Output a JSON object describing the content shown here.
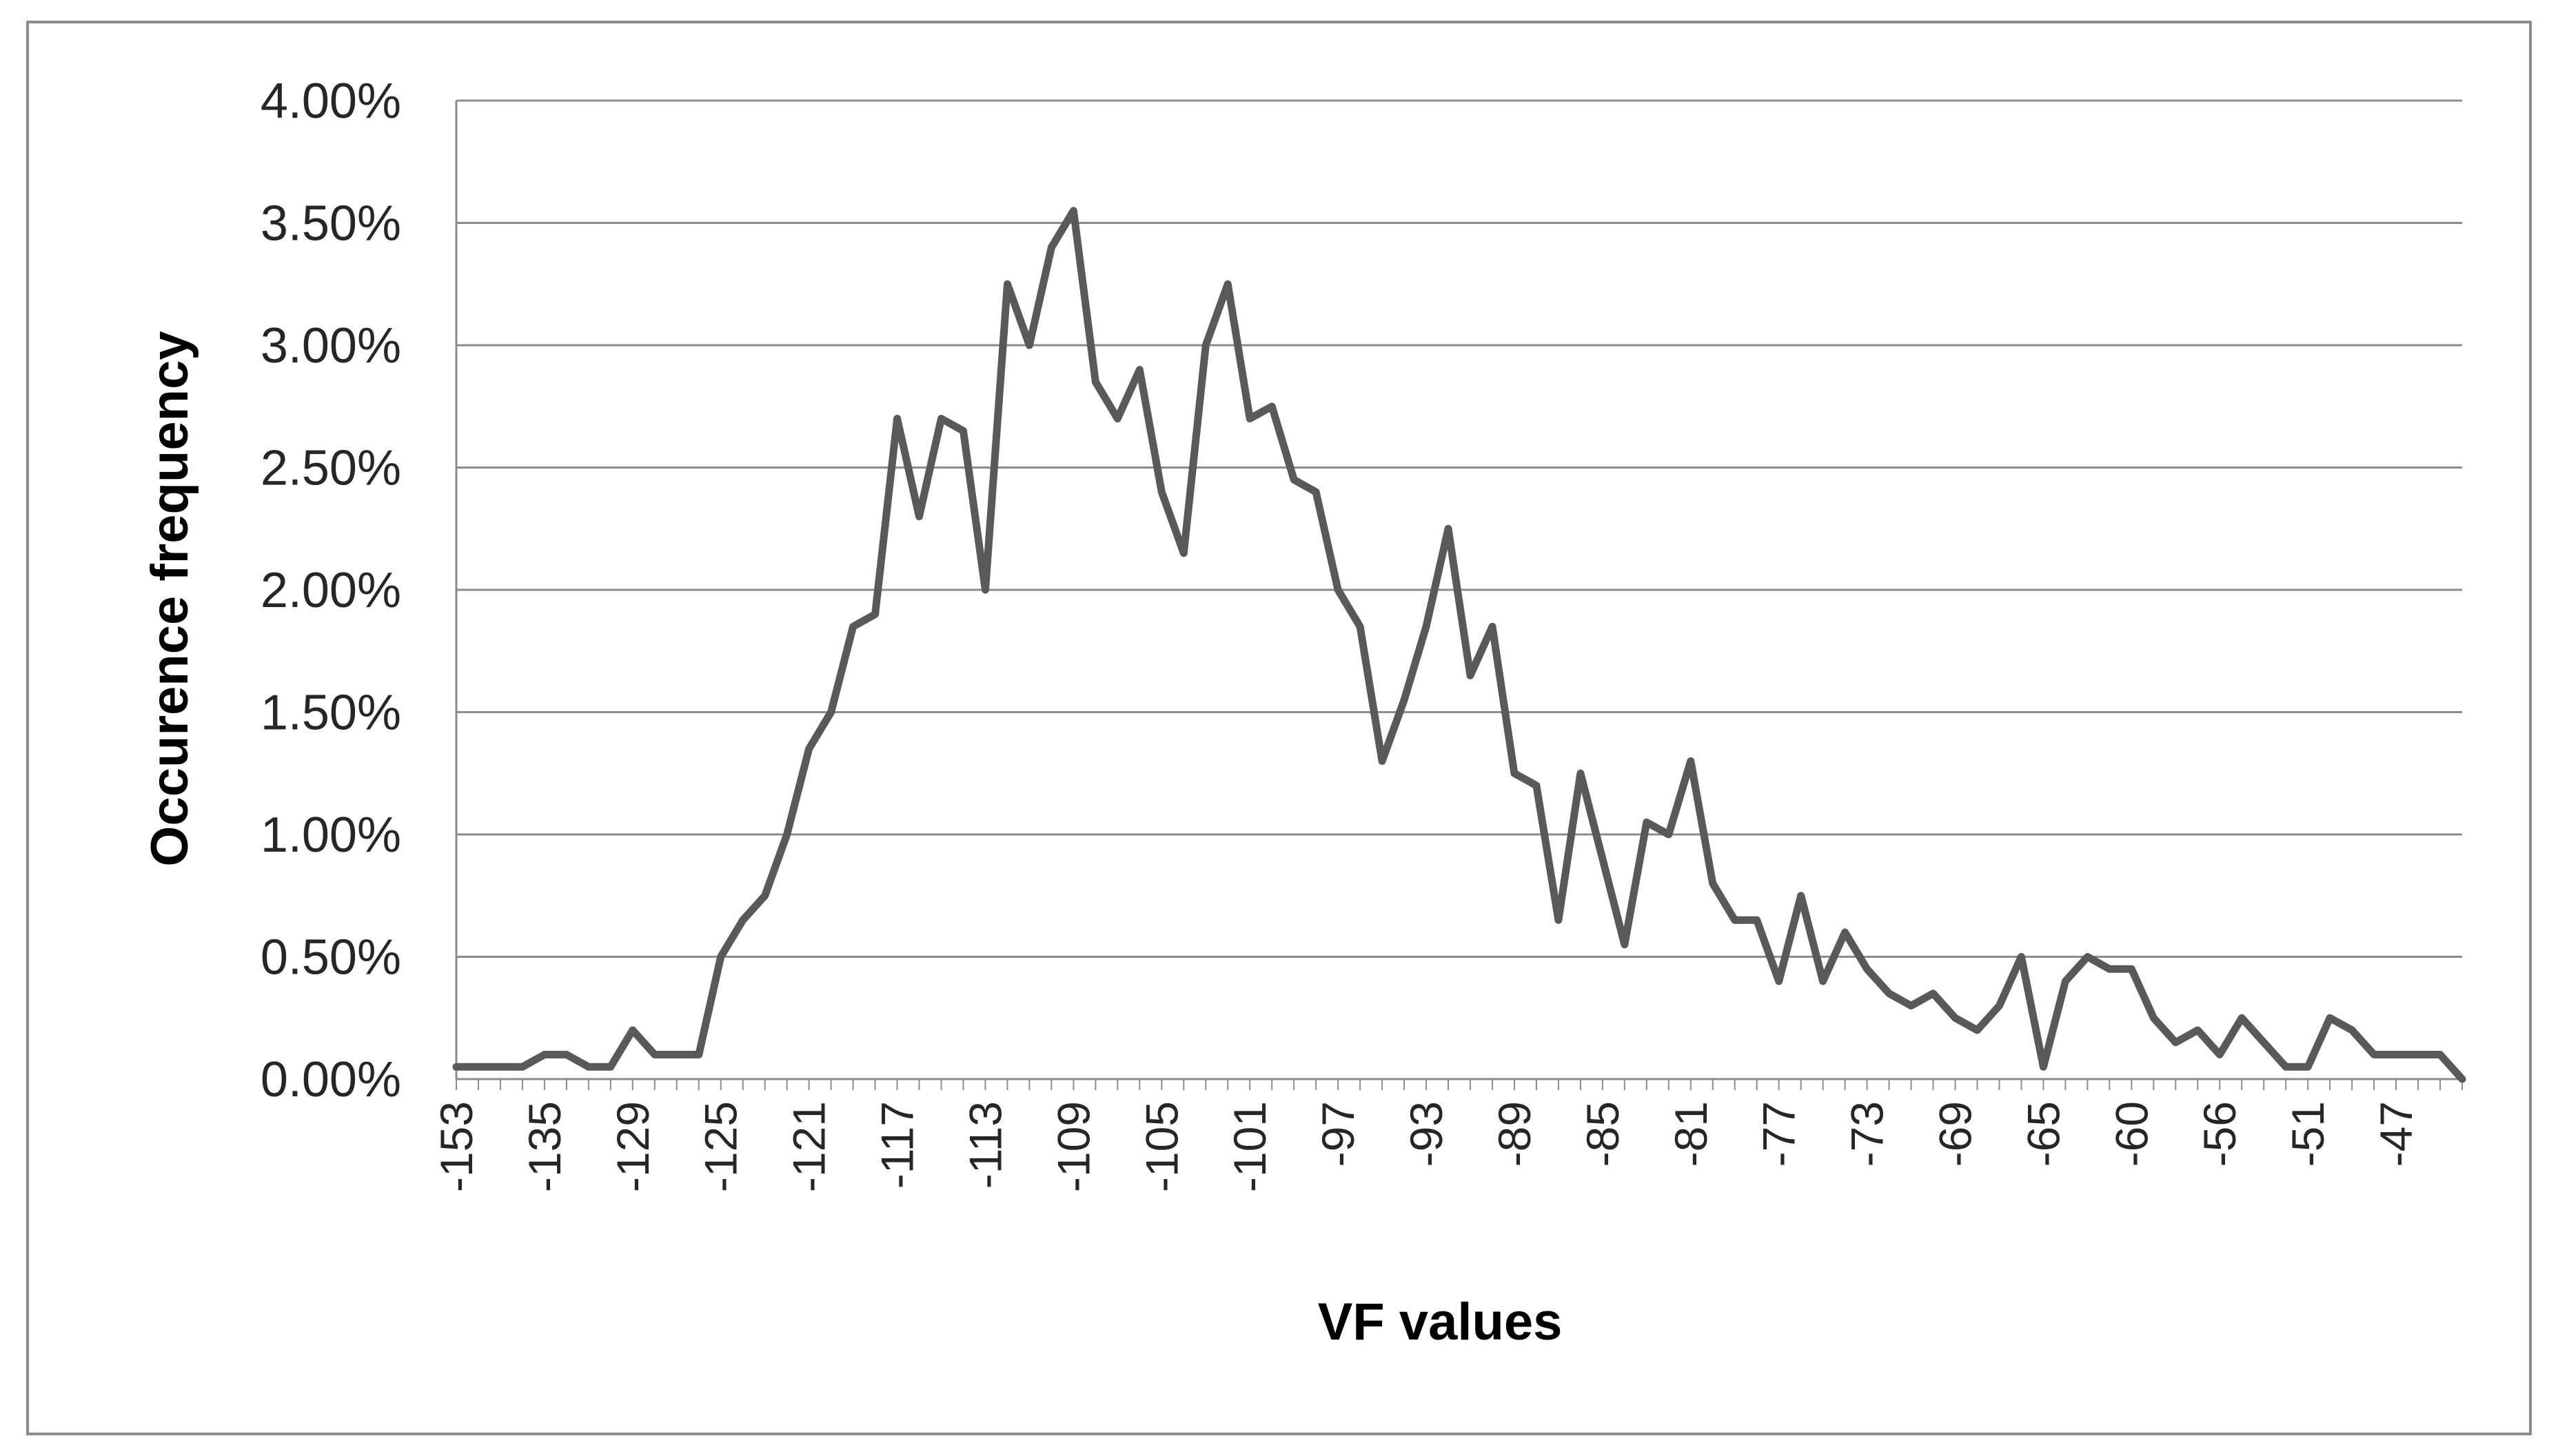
{
  "chart_data": {
    "type": "line",
    "title": "",
    "xlabel": "VF values",
    "ylabel": "Occurence frequency",
    "ylim": [
      0,
      0.04
    ],
    "yticks": [
      {
        "value": 0.0,
        "label": "0.00%"
      },
      {
        "value": 0.005,
        "label": "0.50%"
      },
      {
        "value": 0.01,
        "label": "1.00%"
      },
      {
        "value": 0.015,
        "label": "1.50%"
      },
      {
        "value": 0.02,
        "label": "2.00%"
      },
      {
        "value": 0.025,
        "label": "2.50%"
      },
      {
        "value": 0.03,
        "label": "3.00%"
      },
      {
        "value": 0.035,
        "label": "3.50%"
      },
      {
        "value": 0.04,
        "label": "4.00%"
      }
    ],
    "xtick_labels": [
      "-153",
      "-135",
      "-129",
      "-125",
      "-121",
      "-117",
      "-113",
      "-109",
      "-105",
      "-101",
      "-97",
      "-93",
      "-89",
      "-85",
      "-81",
      "-77",
      "-73",
      "-69",
      "-65",
      "-60",
      "-56",
      "-51",
      "-47"
    ],
    "xtick_every": 4,
    "grid": true,
    "line_color": "#595959",
    "series": [
      {
        "values": [
          0.0005,
          0.0005,
          0.0005,
          0.0005,
          0.001,
          0.001,
          0.0005,
          0.0005,
          0.002,
          0.001,
          0.001,
          0.001,
          0.005,
          0.0065,
          0.0075,
          0.01,
          0.0135,
          0.015,
          0.0185,
          0.019,
          0.027,
          0.023,
          0.027,
          0.0265,
          0.02,
          0.0325,
          0.03,
          0.034,
          0.0355,
          0.0285,
          0.027,
          0.029,
          0.024,
          0.0215,
          0.03,
          0.0325,
          0.027,
          0.0275,
          0.0245,
          0.024,
          0.02,
          0.0185,
          0.013,
          0.0155,
          0.0185,
          0.0225,
          0.0165,
          0.0185,
          0.0125,
          0.012,
          0.0065,
          0.0125,
          0.009,
          0.0055,
          0.0105,
          0.01,
          0.013,
          0.008,
          0.0065,
          0.0065,
          0.004,
          0.0075,
          0.004,
          0.006,
          0.0045,
          0.0035,
          0.003,
          0.0035,
          0.0025,
          0.002,
          0.003,
          0.005,
          0.0005,
          0.004,
          0.005,
          0.0045,
          0.0045,
          0.0025,
          0.0015,
          0.002,
          0.001,
          0.0025,
          0.0015,
          0.0005,
          0.0005,
          0.0025,
          0.002,
          0.001,
          0.001,
          0.001,
          0.001,
          0.0
        ]
      }
    ]
  }
}
